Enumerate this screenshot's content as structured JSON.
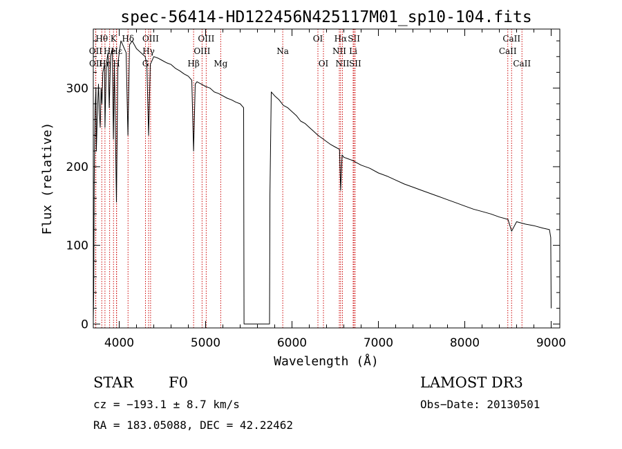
{
  "colors": {
    "axis": "#000000",
    "spectrum": "#000000",
    "line_marker": "#cc0000",
    "background": "#ffffff"
  },
  "chart_data": {
    "type": "line",
    "title": "spec-56414-HD122456N425117M01_sp10-104.fits",
    "xlabel": "Wavelength (Å)",
    "ylabel": "Flux (relative)",
    "xlim": [
      3700,
      9100
    ],
    "ylim": [
      -5,
      375
    ],
    "xticks": [
      4000,
      5000,
      6000,
      7000,
      8000,
      9000
    ],
    "xtick_labels": [
      "4000",
      "5000",
      "6000",
      "7000",
      "8000",
      "9000"
    ],
    "yticks": [
      0,
      100,
      200,
      300
    ],
    "ytick_labels": [
      "0",
      "100",
      "200",
      "300"
    ],
    "grid": false,
    "series": [
      {
        "name": "spectrum",
        "points": [
          [
            3700,
            5
          ],
          [
            3705,
            40
          ],
          [
            3710,
            180
          ],
          [
            3720,
            270
          ],
          [
            3730,
            300
          ],
          [
            3735,
            220
          ],
          [
            3745,
            260
          ],
          [
            3760,
            305
          ],
          [
            3770,
            270
          ],
          [
            3780,
            250
          ],
          [
            3790,
            300
          ],
          [
            3800,
            280
          ],
          [
            3810,
            320
          ],
          [
            3830,
            330
          ],
          [
            3835,
            250
          ],
          [
            3850,
            330
          ],
          [
            3870,
            345
          ],
          [
            3885,
            275
          ],
          [
            3900,
            340
          ],
          [
            3920,
            350
          ],
          [
            3933,
            235
          ],
          [
            3945,
            330
          ],
          [
            3968,
            155
          ],
          [
            3985,
            330
          ],
          [
            4000,
            345
          ],
          [
            4020,
            360
          ],
          [
            4040,
            355
          ],
          [
            4060,
            350
          ],
          [
            4080,
            345
          ],
          [
            4101,
            240
          ],
          [
            4120,
            355
          ],
          [
            4150,
            360
          ],
          [
            4200,
            350
          ],
          [
            4250,
            345
          ],
          [
            4300,
            340
          ],
          [
            4320,
            330
          ],
          [
            4340,
            240
          ],
          [
            4360,
            330
          ],
          [
            4400,
            340
          ],
          [
            4450,
            338
          ],
          [
            4500,
            335
          ],
          [
            4550,
            332
          ],
          [
            4600,
            330
          ],
          [
            4650,
            325
          ],
          [
            4700,
            322
          ],
          [
            4750,
            318
          ],
          [
            4800,
            315
          ],
          [
            4840,
            310
          ],
          [
            4861,
            220
          ],
          [
            4880,
            305
          ],
          [
            4900,
            308
          ],
          [
            4950,
            305
          ],
          [
            5000,
            302
          ],
          [
            5050,
            300
          ],
          [
            5100,
            295
          ],
          [
            5150,
            293
          ],
          [
            5200,
            290
          ],
          [
            5250,
            287
          ],
          [
            5300,
            285
          ],
          [
            5350,
            282
          ],
          [
            5400,
            280
          ],
          [
            5440,
            275
          ],
          [
            5445,
            0
          ],
          [
            5740,
            0
          ],
          [
            5745,
            165
          ],
          [
            5760,
            295
          ],
          [
            5800,
            290
          ],
          [
            5850,
            285
          ],
          [
            5900,
            278
          ],
          [
            5950,
            275
          ],
          [
            6000,
            270
          ],
          [
            6050,
            265
          ],
          [
            6100,
            258
          ],
          [
            6150,
            255
          ],
          [
            6200,
            250
          ],
          [
            6250,
            245
          ],
          [
            6300,
            240
          ],
          [
            6350,
            236
          ],
          [
            6400,
            232
          ],
          [
            6450,
            228
          ],
          [
            6500,
            225
          ],
          [
            6550,
            222
          ],
          [
            6563,
            170
          ],
          [
            6580,
            215
          ],
          [
            6600,
            212
          ],
          [
            6650,
            210
          ],
          [
            6700,
            208
          ],
          [
            6800,
            202
          ],
          [
            6900,
            198
          ],
          [
            7000,
            192
          ],
          [
            7100,
            188
          ],
          [
            7200,
            183
          ],
          [
            7300,
            178
          ],
          [
            7400,
            174
          ],
          [
            7500,
            170
          ],
          [
            7600,
            166
          ],
          [
            7700,
            162
          ],
          [
            7800,
            158
          ],
          [
            7900,
            154
          ],
          [
            8000,
            150
          ],
          [
            8100,
            146
          ],
          [
            8200,
            143
          ],
          [
            8300,
            140
          ],
          [
            8400,
            136
          ],
          [
            8500,
            133
          ],
          [
            8542,
            118
          ],
          [
            8600,
            130
          ],
          [
            8700,
            127
          ],
          [
            8800,
            125
          ],
          [
            8900,
            122
          ],
          [
            8980,
            120
          ],
          [
            8995,
            110
          ],
          [
            9000,
            20
          ]
        ]
      }
    ],
    "line_markers": [
      {
        "label": "Hθ",
        "wavelength": 3798,
        "row": 1
      },
      {
        "label": "OII",
        "wavelength": 3727,
        "row": 2
      },
      {
        "label": "Hη",
        "wavelength": 3835,
        "row": 3
      },
      {
        "label": "OII",
        "wavelength": 3729,
        "row": 3
      },
      {
        "label": "K",
        "wavelength": 3934,
        "row": 1
      },
      {
        "label": "He",
        "wavelength": 3889,
        "row": 2
      },
      {
        "label": "H",
        "wavelength": 3968,
        "row": 3
      },
      {
        "label": "Hδ",
        "wavelength": 4102,
        "row": 1
      },
      {
        "label": "Hε",
        "wavelength": 3970,
        "row": 2
      },
      {
        "label": "OIII",
        "wavelength": 4363,
        "row": 1
      },
      {
        "label": "Hγ",
        "wavelength": 4340,
        "row": 2
      },
      {
        "label": "G",
        "wavelength": 4304,
        "row": 3
      },
      {
        "label": "OIII",
        "wavelength": 5007,
        "row": 1
      },
      {
        "label": "OIII",
        "wavelength": 4959,
        "row": 2
      },
      {
        "label": "Hβ",
        "wavelength": 4861,
        "row": 3
      },
      {
        "label": "Mg",
        "wavelength": 5175,
        "row": 3
      },
      {
        "label": "Na",
        "wavelength": 5893,
        "row": 2
      },
      {
        "label": "OI",
        "wavelength": 6300,
        "row": 1
      },
      {
        "label": "OI",
        "wavelength": 6364,
        "row": 3
      },
      {
        "label": "Hα",
        "wavelength": 6563,
        "row": 1
      },
      {
        "label": "SII",
        "wavelength": 6717,
        "row": 1
      },
      {
        "label": "NII",
        "wavelength": 6548,
        "row": 2
      },
      {
        "label": "Li",
        "wavelength": 6708,
        "row": 2
      },
      {
        "label": "NII",
        "wavelength": 6584,
        "row": 3
      },
      {
        "label": "SII",
        "wavelength": 6731,
        "row": 3
      },
      {
        "label": "CaII",
        "wavelength": 8542,
        "row": 1
      },
      {
        "label": "CaII",
        "wavelength": 8498,
        "row": 2
      },
      {
        "label": "CaII",
        "wavelength": 8662,
        "row": 3
      }
    ]
  },
  "info": {
    "class_label": "STAR",
    "subclass": "F0",
    "survey": "LAMOST DR3",
    "velocity": "cz = −193.1 ± 8.7 km/s",
    "obs_date": "Obs−Date: 20130501",
    "coords": "RA = 183.05088, DEC =  42.22462"
  }
}
